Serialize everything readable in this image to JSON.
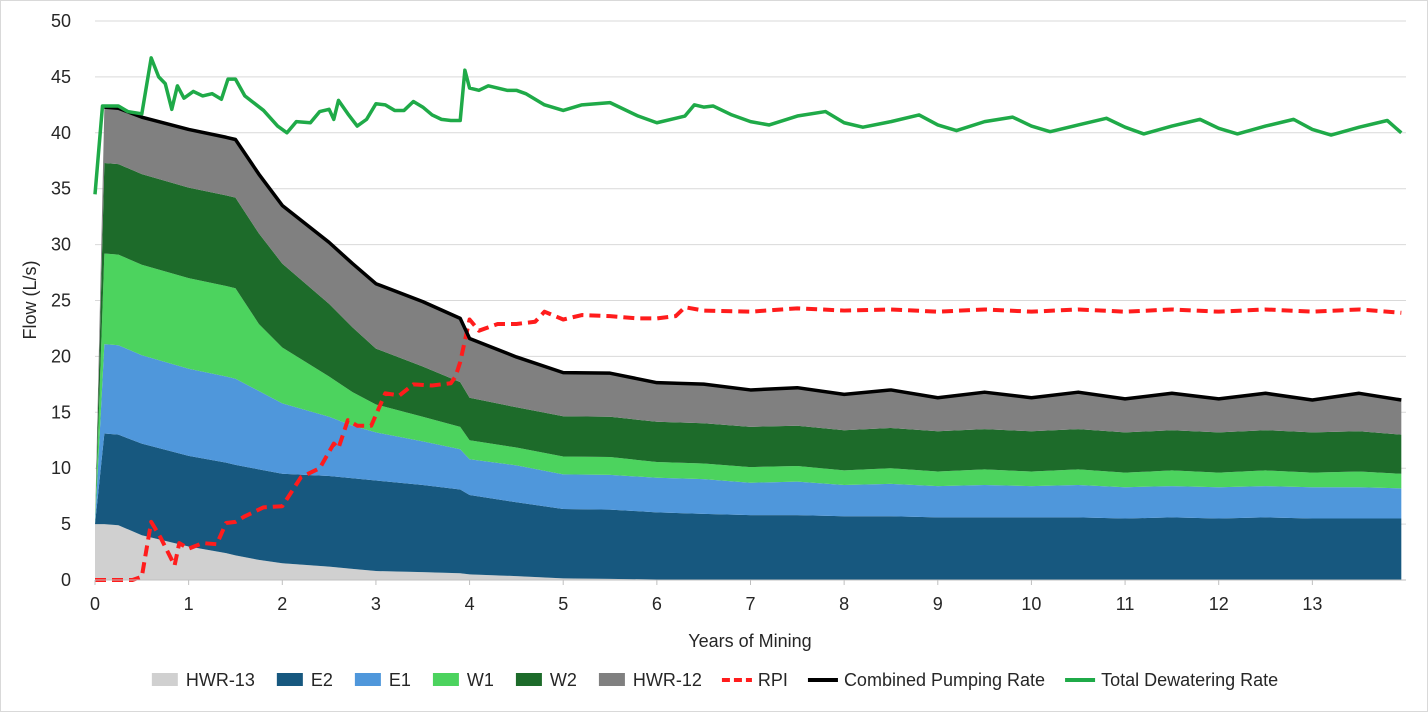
{
  "chart_data": {
    "type": "area",
    "title": "",
    "xlabel": "Years of Mining",
    "ylabel": "Flow (L/s)",
    "xlim": [
      0,
      14
    ],
    "ylim": [
      0,
      50
    ],
    "x_ticks": [
      0,
      1,
      2,
      3,
      4,
      5,
      6,
      7,
      8,
      9,
      10,
      11,
      12,
      13
    ],
    "y_ticks": [
      0,
      5,
      10,
      15,
      20,
      25,
      30,
      35,
      40,
      45,
      50
    ],
    "grid": "horizontal",
    "legend_position": "bottom",
    "x": [
      0,
      0.1,
      0.25,
      0.5,
      1,
      1.4,
      1.5,
      1.75,
      2,
      2.5,
      2.75,
      3,
      3.5,
      3.9,
      4,
      4.5,
      5,
      5.5,
      6,
      6.5,
      7,
      7.5,
      8,
      8.5,
      9,
      9.5,
      10,
      10.5,
      11,
      11.5,
      12,
      12.5,
      13,
      13.5,
      13.95
    ],
    "stacked_series": [
      {
        "name": "HWR-13",
        "color": "#d0d0d0",
        "values": [
          5.0,
          5.0,
          4.9,
          4.0,
          3.0,
          2.4,
          2.2,
          1.8,
          1.5,
          1.2,
          1.0,
          0.8,
          0.7,
          0.6,
          0.5,
          0.35,
          0.15,
          0.1,
          0.05,
          0.02,
          0,
          0,
          0,
          0,
          0,
          0,
          0,
          0,
          0,
          0,
          0,
          0,
          0,
          0,
          0
        ]
      },
      {
        "name": "E2",
        "color": "#17587f",
        "values": [
          0,
          8.1,
          8.1,
          8.2,
          8.1,
          8.1,
          8.1,
          8.1,
          8.0,
          8.1,
          8.1,
          8.1,
          7.8,
          7.5,
          7.1,
          6.6,
          6.2,
          6.2,
          6.0,
          5.9,
          5.8,
          5.8,
          5.7,
          5.7,
          5.6,
          5.6,
          5.6,
          5.6,
          5.5,
          5.6,
          5.5,
          5.6,
          5.5,
          5.5,
          5.5
        ]
      },
      {
        "name": "E1",
        "color": "#4f97db",
        "values": [
          0,
          8.0,
          8.0,
          7.9,
          7.8,
          7.7,
          7.7,
          7.0,
          6.3,
          5.3,
          4.7,
          4.3,
          3.9,
          3.6,
          3.2,
          3.3,
          3.1,
          3.1,
          3.1,
          3.1,
          2.9,
          3.0,
          2.8,
          2.9,
          2.8,
          2.9,
          2.8,
          2.9,
          2.8,
          2.8,
          2.8,
          2.8,
          2.8,
          2.8,
          2.7
        ]
      },
      {
        "name": "W1",
        "color": "#4cd35e",
        "values": [
          0,
          8.1,
          8.1,
          8.1,
          8.1,
          8.1,
          8.1,
          6.0,
          5.0,
          3.6,
          3.0,
          2.5,
          2.2,
          2.0,
          1.7,
          1.6,
          1.6,
          1.6,
          1.4,
          1.4,
          1.4,
          1.4,
          1.3,
          1.4,
          1.3,
          1.4,
          1.3,
          1.4,
          1.3,
          1.4,
          1.3,
          1.4,
          1.3,
          1.4,
          1.3
        ]
      },
      {
        "name": "W2",
        "color": "#1d6b2a",
        "values": [
          0,
          8.1,
          8.1,
          8.1,
          8.1,
          8.1,
          8.1,
          8.1,
          7.5,
          6.5,
          5.8,
          5.0,
          4.5,
          4.0,
          3.8,
          3.6,
          3.6,
          3.6,
          3.6,
          3.6,
          3.6,
          3.6,
          3.6,
          3.6,
          3.6,
          3.6,
          3.6,
          3.6,
          3.6,
          3.6,
          3.6,
          3.6,
          3.6,
          3.6,
          3.5
        ]
      },
      {
        "name": "HWR-12",
        "color": "#808080",
        "values": [
          0,
          5.0,
          5.0,
          5.1,
          5.2,
          5.2,
          5.2,
          5.3,
          5.2,
          5.5,
          5.7,
          5.8,
          5.8,
          5.7,
          5.3,
          4.5,
          3.9,
          3.9,
          3.5,
          3.5,
          3.3,
          3.4,
          3.2,
          3.4,
          3.0,
          3.3,
          3.0,
          3.3,
          3.0,
          3.3,
          3.0,
          3.3,
          2.9,
          3.4,
          3.1
        ]
      }
    ],
    "line_series": [
      {
        "name": "RPI",
        "color": "#ff1c1c",
        "style": "dashed",
        "x": [
          0,
          0.4,
          0.5,
          0.6,
          0.7,
          0.85,
          0.9,
          1.0,
          1.15,
          1.3,
          1.4,
          1.5,
          1.6,
          1.8,
          2.0,
          2.2,
          2.4,
          2.55,
          2.6,
          2.7,
          2.8,
          2.95,
          3.1,
          3.25,
          3.4,
          3.6,
          3.8,
          3.85,
          3.9,
          4.0,
          4.1,
          4.3,
          4.5,
          4.7,
          4.8,
          5.0,
          5.2,
          5.5,
          5.8,
          6.0,
          6.2,
          6.3,
          6.5,
          7.0,
          7.5,
          8.0,
          8.5,
          9.0,
          9.5,
          10.0,
          10.5,
          11.0,
          11.5,
          12.0,
          12.5,
          13.0,
          13.5,
          13.95
        ],
        "values": [
          0,
          0,
          0.3,
          5.2,
          3.8,
          1.3,
          3.3,
          2.8,
          3.3,
          3.2,
          5.1,
          5.2,
          5.7,
          6.5,
          6.6,
          9.2,
          10.0,
          12.2,
          11.8,
          14.3,
          13.8,
          13.8,
          16.7,
          16.5,
          17.5,
          17.4,
          17.6,
          18.2,
          19.5,
          23.3,
          22.3,
          22.9,
          22.9,
          23.1,
          24.0,
          23.3,
          23.7,
          23.6,
          23.4,
          23.4,
          23.6,
          24.4,
          24.1,
          24.0,
          24.3,
          24.1,
          24.2,
          24.0,
          24.2,
          24.0,
          24.2,
          24.0,
          24.2,
          24.0,
          24.2,
          24.0,
          24.2,
          23.9
        ]
      },
      {
        "name": "Combined Pumping Rate",
        "color": "#000000",
        "style": "solid",
        "use_stack_total": true
      },
      {
        "name": "Total Dewatering Rate",
        "color": "#1faa48",
        "style": "solid",
        "x": [
          0,
          0.08,
          0.25,
          0.35,
          0.5,
          0.6,
          0.68,
          0.75,
          0.82,
          0.88,
          0.95,
          1.05,
          1.15,
          1.25,
          1.35,
          1.42,
          1.5,
          1.6,
          1.8,
          1.95,
          2.05,
          2.15,
          2.3,
          2.4,
          2.5,
          2.55,
          2.6,
          2.7,
          2.8,
          2.9,
          3.0,
          3.1,
          3.2,
          3.3,
          3.4,
          3.5,
          3.6,
          3.7,
          3.8,
          3.9,
          3.95,
          4.0,
          4.1,
          4.2,
          4.4,
          4.5,
          4.6,
          4.7,
          4.8,
          5.0,
          5.2,
          5.5,
          5.8,
          6.0,
          6.2,
          6.3,
          6.4,
          6.5,
          6.6,
          6.8,
          7.0,
          7.2,
          7.5,
          7.8,
          8.0,
          8.2,
          8.5,
          8.8,
          9.0,
          9.2,
          9.5,
          9.8,
          10.0,
          10.2,
          10.5,
          10.8,
          11.0,
          11.2,
          11.5,
          11.8,
          12.0,
          12.2,
          12.5,
          12.8,
          13.0,
          13.2,
          13.5,
          13.8,
          13.95
        ],
        "values": [
          34.5,
          42.4,
          42.4,
          41.9,
          41.7,
          46.7,
          45.0,
          44.4,
          42.1,
          44.2,
          43.1,
          43.7,
          43.3,
          43.5,
          43.0,
          44.8,
          44.8,
          43.3,
          42.0,
          40.6,
          40.0,
          41.0,
          40.9,
          41.9,
          42.1,
          41.2,
          42.9,
          41.7,
          40.6,
          41.2,
          42.6,
          42.5,
          42.0,
          42.0,
          42.8,
          42.3,
          41.6,
          41.2,
          41.1,
          41.1,
          45.6,
          44.0,
          43.8,
          44.2,
          43.8,
          43.8,
          43.5,
          43.0,
          42.5,
          42.0,
          42.5,
          42.7,
          41.5,
          40.9,
          41.3,
          41.5,
          42.5,
          42.3,
          42.4,
          41.6,
          41.0,
          40.7,
          41.5,
          41.9,
          40.9,
          40.5,
          41.0,
          41.6,
          40.7,
          40.2,
          41.0,
          41.4,
          40.6,
          40.1,
          40.7,
          41.3,
          40.5,
          39.9,
          40.6,
          41.2,
          40.4,
          39.9,
          40.6,
          41.2,
          40.3,
          39.8,
          40.5,
          41.1,
          40.0
        ]
      }
    ],
    "legend": [
      "HWR-13",
      "E2",
      "E1",
      "W1",
      "W2",
      "HWR-12",
      "RPI",
      "Combined Pumping Rate",
      "Total Dewatering Rate"
    ]
  }
}
